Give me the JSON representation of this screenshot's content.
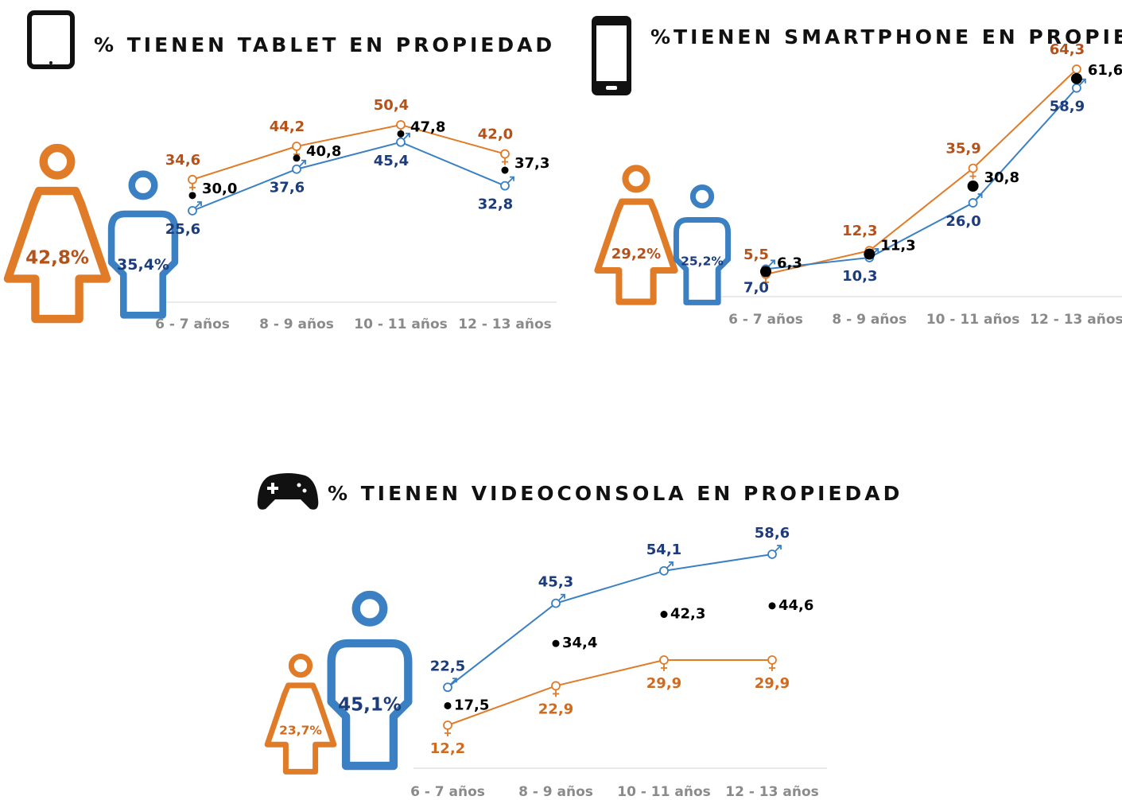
{
  "chart_data": [
    {
      "type": "line",
      "title": "% TIENEN TABLET EN PROPIEDAD",
      "categories": [
        "6 - 7 años",
        "8 - 9 años",
        "10 - 11 años",
        "12 - 13 años"
      ],
      "series": [
        {
          "color": "#e07b28",
          "label_color": "#b4521a",
          "marker": "female",
          "line": true,
          "values": [
            34.6,
            44.2,
            50.4,
            42.0
          ],
          "value_labels": [
            "34,6",
            "44,2",
            "50,4",
            "42,0"
          ],
          "overall": 42.8,
          "overall_label": "42,8%"
        },
        {
          "color": "#3a80c3",
          "label_color": "#1c3c7c",
          "marker": "male",
          "line": true,
          "values": [
            25.6,
            37.6,
            45.4,
            32.8
          ],
          "value_labels": [
            "25,6",
            "37,6",
            "45,4",
            "32,8"
          ],
          "overall": 35.4,
          "overall_label": "35,4%"
        },
        {
          "color": "#000000",
          "label_color": "#000000",
          "marker": "dot",
          "line": false,
          "values": [
            30.0,
            40.8,
            47.8,
            37.3
          ],
          "value_labels": [
            "30,0",
            "40,8",
            "47,8",
            "37,3"
          ]
        }
      ]
    },
    {
      "type": "line",
      "title": "%TIENEN SMARTPHONE EN PROPIEDAD",
      "categories": [
        "6 - 7 años",
        "8 - 9 años",
        "10 - 11 años",
        "12 - 13 años"
      ],
      "series": [
        {
          "color": "#e07b28",
          "label_color": "#b4521a",
          "marker": "female",
          "line": true,
          "values": [
            5.5,
            12.3,
            35.9,
            64.3
          ],
          "value_labels": [
            "5,5",
            "12,3",
            "35,9",
            "64,3"
          ],
          "overall": 29.2,
          "overall_label": "29,2%"
        },
        {
          "color": "#3a80c3",
          "label_color": "#1c3c7c",
          "marker": "male",
          "line": true,
          "values": [
            7.0,
            10.3,
            26.0,
            58.9
          ],
          "value_labels": [
            "7,0",
            "10,3",
            "26,0",
            "58,9"
          ],
          "overall": 25.2,
          "overall_label": "25,2%"
        },
        {
          "color": "#000000",
          "label_color": "#000000",
          "marker": "dot",
          "line": false,
          "values": [
            6.3,
            11.3,
            30.8,
            61.6
          ],
          "value_labels": [
            "6,3",
            "11,3",
            "30,8",
            "61,6"
          ]
        }
      ]
    },
    {
      "type": "line",
      "title": "% TIENEN VIDEOCONSOLA EN PROPIEDAD",
      "categories": [
        "6 - 7 años",
        "8 - 9 años",
        "10 - 11 años",
        "12 - 13 años"
      ],
      "series": [
        {
          "color": "#e07b28",
          "label_color": "#d06a1e",
          "marker": "female",
          "line": true,
          "values": [
            12.2,
            22.9,
            29.9,
            29.9
          ],
          "value_labels": [
            "12,2",
            "22,9",
            "29,9",
            "29,9"
          ],
          "overall": 23.7,
          "overall_label": "23,7%"
        },
        {
          "color": "#3a80c3",
          "label_color": "#1c3c7c",
          "marker": "male",
          "line": true,
          "values": [
            22.5,
            45.3,
            54.1,
            58.6
          ],
          "value_labels": [
            "22,5",
            "45,3",
            "54,1",
            "58,6"
          ],
          "overall": 45.1,
          "overall_label": "45,1%"
        },
        {
          "color": "#000000",
          "label_color": "#000000",
          "marker": "dot",
          "line": false,
          "values": [
            17.5,
            34.4,
            42.3,
            44.6
          ],
          "value_labels": [
            "17,5",
            "34,4",
            "42,3",
            "44,6"
          ]
        }
      ]
    }
  ]
}
